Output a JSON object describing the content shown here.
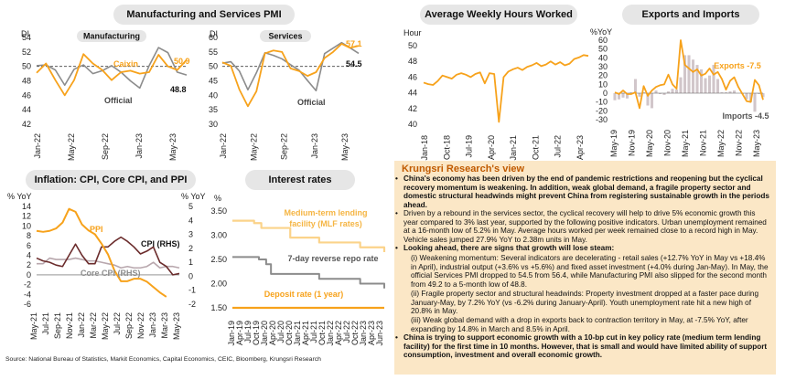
{
  "titles": {
    "pmi": "Manufacturing and Services PMI",
    "hours": "Average Weekly Hours Worked",
    "exports": "Exports and Imports",
    "inflation": "Inflation: CPI, Core CPI, and PPI",
    "rates": "Interest rates"
  },
  "colors": {
    "orange": "#f7a21b",
    "grey": "#8c8c8c",
    "mauve": "#b8a7ad",
    "bar": "#d1c6ca",
    "dash": "#7f7f7f"
  },
  "research": {
    "title": "Krungsri Research's view",
    "bullets": [
      "China's economy has been driven by the end of pandemic restrictions and reopening but the cyclical recovery momentum is weakening. In addition, weak global demand, a fragile property sector and domestic structural headwinds might prevent China from registering sustainable growth in the periods ahead.",
      "Driven by a rebound in the services sector, the cyclical recovery will help to drive 5% economic growth this year compared to 3% last year, supported by the following positive indicators. Urban unemployment remained at a 16-month low of 5.2% in May. Average hours worked per week remained close to a record high in May. Vehicle sales jumped 27.9% YoY to 2.38m units in May.",
      "Looking ahead, there are signs that growth will lose steam:",
      "China is trying to support economic growth with a 10-bp cut in key policy rate (medium term lending facility) for the first time in 10 months. However, that is small and would have limited ability of support consumption, investment and overall economic growth."
    ],
    "sub": [
      "(i) Weakening momentum: Several indicators are decelerating - retail sales (+12.7% YoY in May vs +18.4% in April), industrial output (+3.6% vs +5.6%) and fixed asset investment (+4.0% during Jan-May). In May, the official Services PMI dropped to 54.5 from 56.4, while Manufacturing PMI also slipped for the second month from 49.2 to a 5-month low of 48.8.",
      "(ii) Fragile property sector and structural headwinds: Property investment dropped at a faster pace during January-May, by 7.2% YoY (vs -6.2% during January-April). Youth unemployment rate hit a new high of 20.8% in May.",
      "(iii) Weak global demand with a drop in exports back to contraction territory in May, at -7.5% YoY, after expanding by 14.8% in March and 8.5% in April."
    ]
  },
  "source": "Source: National Bureau of Statistics, Markit Economics, Capital Economics, CEIC, Bloomberg, Krungsri Research",
  "chart_data": [
    {
      "type": "line",
      "title": "Manufacturing",
      "ylabel": "DI",
      "ylim": [
        42,
        54
      ],
      "yticks": [
        42,
        44,
        46,
        48,
        50,
        52,
        54
      ],
      "x_labels": [
        "Jan-22",
        "May-22",
        "Sep-22",
        "Jan-23",
        "May-23"
      ],
      "reference_line": 50,
      "series": [
        {
          "name": "Caixin",
          "end_label": "50.9",
          "values": [
            49.1,
            50.4,
            48.1,
            46.0,
            48.1,
            51.7,
            50.4,
            49.5,
            48.1,
            49.2,
            49.4,
            49.0,
            49.2,
            51.6,
            50.0,
            49.5,
            50.9
          ]
        },
        {
          "name": "Official",
          "end_label": "48.8",
          "values": [
            50.1,
            50.2,
            49.5,
            47.4,
            49.6,
            50.2,
            49.0,
            49.4,
            50.1,
            49.2,
            48.0,
            47.0,
            50.1,
            52.6,
            51.9,
            49.2,
            48.8
          ]
        }
      ]
    },
    {
      "type": "line",
      "title": "Services",
      "ylabel": "DI",
      "ylim": [
        30,
        60
      ],
      "yticks": [
        30,
        35,
        40,
        45,
        50,
        55,
        60
      ],
      "x_labels": [
        "Jan-22",
        "May-22",
        "Sep-22",
        "Jan-23",
        "May-23"
      ],
      "reference_line": 50,
      "series": [
        {
          "name": "Caixin",
          "end_label": "57.1",
          "values": [
            51.4,
            50.2,
            42.0,
            36.2,
            41.4,
            54.5,
            55.5,
            55.0,
            49.3,
            48.4,
            46.7,
            48.0,
            52.9,
            55.0,
            57.8,
            56.4,
            57.1
          ]
        },
        {
          "name": "Official",
          "end_label": "54.5",
          "values": [
            51.1,
            51.6,
            48.4,
            41.9,
            47.8,
            54.7,
            53.8,
            52.6,
            50.6,
            48.7,
            45.1,
            41.6,
            54.4,
            56.3,
            58.2,
            56.4,
            54.5
          ]
        }
      ]
    },
    {
      "type": "line",
      "title": "",
      "ylabel": "Hour",
      "ylim": [
        40,
        50
      ],
      "yticks": [
        40,
        42,
        44,
        46,
        48,
        50
      ],
      "x_labels": [
        "Jan-18",
        "Oct-18",
        "Jul-19",
        "Apr-20",
        "Jan-21",
        "Oct-21",
        "Jul-22",
        "Apr-23"
      ],
      "series": [
        {
          "name": "",
          "values": [
            45.3,
            45.1,
            45.0,
            45.5,
            46.2,
            46.0,
            45.8,
            46.3,
            46.5,
            46.3,
            46.0,
            46.4,
            46.6,
            45.2,
            46.5,
            46.4,
            40.3,
            46.0,
            46.7,
            47.0,
            47.2,
            46.9,
            47.3,
            47.5,
            47.8,
            47.4,
            47.6,
            48.0,
            47.6,
            47.9,
            47.5,
            47.7,
            48.3,
            48.5,
            48.8,
            48.7
          ]
        }
      ]
    },
    {
      "type": "bar+line",
      "title": "",
      "ylabel": "%YoY",
      "ylim": [
        -30,
        60
      ],
      "yticks": [
        -30,
        -20,
        -10,
        0,
        10,
        20,
        30,
        40,
        50,
        60
      ],
      "x_labels": [
        "May-19",
        "Nov-19",
        "May-20",
        "Nov-20",
        "May-21",
        "Nov-21",
        "May-22",
        "Nov-22",
        "May-23"
      ],
      "series": [
        {
          "name": "Exports",
          "end_label": "Exports -7.5",
          "values": [
            1,
            -1,
            3,
            -1,
            -1,
            1,
            -17,
            8,
            -3,
            3,
            7,
            9,
            10,
            21,
            10,
            5,
            60,
            32,
            28,
            24,
            27,
            20,
            22,
            28,
            21,
            24,
            16,
            4,
            14,
            18,
            7,
            -1,
            -9,
            -10,
            15,
            9,
            -7.5
          ]
        },
        {
          "name": "Imports",
          "end_label": "Imports -4.5",
          "values": [
            -8,
            -7,
            -5,
            -6,
            1,
            16,
            -4,
            1,
            -14,
            -17,
            3,
            -1,
            -2,
            2,
            5,
            4,
            18,
            43,
            43,
            38,
            32,
            27,
            17,
            20,
            32,
            16,
            1,
            1,
            2,
            3,
            0,
            -1,
            -7,
            -10,
            -21,
            -1,
            -4.5
          ]
        }
      ]
    },
    {
      "type": "line",
      "title": "",
      "ylabel": "% YoY",
      "y2label": "% YoY",
      "ylim": [
        -6,
        14
      ],
      "yticks": [
        -6,
        -4,
        -2,
        0,
        2,
        4,
        6,
        8,
        10,
        12,
        14
      ],
      "y2lim": [
        -2,
        5
      ],
      "y2ticks": [
        -2,
        -1,
        0,
        1,
        2,
        3,
        4,
        5
      ],
      "x_labels": [
        "May-21",
        "Jul-21",
        "Sep-21",
        "Nov-21",
        "Jan-22",
        "Mar-22",
        "May-22",
        "Jul-22",
        "Sep-22",
        "Nov-22",
        "Jan-23",
        "Mar-23",
        "May-23"
      ],
      "series": [
        {
          "name": "PPI",
          "axis": "left",
          "values": [
            9.0,
            8.8,
            9.0,
            9.5,
            10.7,
            13.5,
            12.9,
            10.3,
            9.1,
            8.3,
            6.4,
            4.2,
            0.9,
            -1.3,
            -1.3,
            -0.8,
            -0.8,
            -1.4,
            -2.5,
            -3.6,
            -4.5
          ]
        },
        {
          "name": "CPI (RHS)",
          "axis": "right",
          "values": [
            1.3,
            1.1,
            1.0,
            0.8,
            0.7,
            1.5,
            2.3,
            1.5,
            0.9,
            0.9,
            2.1,
            2.1,
            2.5,
            2.8,
            2.5,
            2.1,
            1.6,
            1.8,
            2.1,
            1.0,
            0.7,
            0.1,
            0.2
          ]
        },
        {
          "name": "Core CPI (RHS)",
          "axis": "right",
          "values": [
            0.9,
            0.9,
            1.3,
            1.2,
            1.2,
            1.2,
            1.3,
            1.2,
            1.1,
            1.1,
            1.0,
            0.9,
            0.8,
            0.6,
            0.7,
            0.6,
            0.6,
            0.7,
            1.0,
            0.6,
            0.7,
            0.7,
            0.6
          ]
        }
      ]
    },
    {
      "type": "step",
      "title": "",
      "ylabel": "%",
      "ylim": [
        1.5,
        3.5
      ],
      "yticks": [
        1.5,
        2.0,
        2.5,
        3.0,
        3.5
      ],
      "x_labels": [
        "Jan-19",
        "Apr-19",
        "Jul-19",
        "Oct-19",
        "Jan-20",
        "Apr-20",
        "Jul-20",
        "Oct-20",
        "Jan-21",
        "Apr-21",
        "Jul-21",
        "Oct-21",
        "Jan-22",
        "Apr-22",
        "Jul-22",
        "Oct-22",
        "Jan-23",
        "Apr-23",
        "Jun-23"
      ],
      "series": [
        {
          "name": "Medium-term lending facility (MLF rates)",
          "values": [
            3.3,
            3.3,
            3.3,
            3.3,
            3.3,
            3.3,
            3.3,
            3.3,
            3.3,
            3.25,
            3.25,
            3.25,
            3.15,
            3.15,
            3.15,
            3.15,
            3.15,
            3.15,
            3.15,
            3.15,
            3.15,
            3.15,
            3.15,
            3.15,
            2.95,
            2.95,
            2.95,
            2.95,
            2.95,
            2.95,
            2.95,
            2.95,
            2.95,
            2.95,
            2.95,
            2.95,
            2.85,
            2.85,
            2.85,
            2.85,
            2.85,
            2.85,
            2.85,
            2.85,
            2.85,
            2.85,
            2.85,
            2.85,
            2.85,
            2.85,
            2.85,
            2.85,
            2.85,
            2.75,
            2.75,
            2.75,
            2.75,
            2.75,
            2.75,
            2.75,
            2.75,
            2.75,
            2.75,
            2.65
          ]
        },
        {
          "name": "7-day reverse repo rate",
          "values": [
            2.55,
            2.55,
            2.55,
            2.55,
            2.55,
            2.55,
            2.55,
            2.55,
            2.55,
            2.55,
            2.55,
            2.5,
            2.5,
            2.5,
            2.4,
            2.4,
            2.2,
            2.2,
            2.2,
            2.2,
            2.2,
            2.2,
            2.2,
            2.2,
            2.2,
            2.2,
            2.2,
            2.2,
            2.2,
            2.2,
            2.2,
            2.2,
            2.2,
            2.2,
            2.2,
            2.2,
            2.1,
            2.1,
            2.1,
            2.1,
            2.1,
            2.1,
            2.1,
            2.1,
            2.1,
            2.1,
            2.1,
            2.1,
            2.1,
            2.1,
            2.1,
            2.1,
            2.1,
            2.0,
            2.0,
            2.0,
            2.0,
            2.0,
            2.0,
            2.0,
            2.0,
            2.0,
            2.0,
            1.9
          ]
        },
        {
          "name": "Deposit rate (1 year)",
          "values": [
            1.5,
            1.5,
            1.5,
            1.5,
            1.5,
            1.5,
            1.5,
            1.5,
            1.5,
            1.5,
            1.5,
            1.5,
            1.5,
            1.5,
            1.5,
            1.5,
            1.5,
            1.5,
            1.5,
            1.5,
            1.5,
            1.5,
            1.5,
            1.5,
            1.5,
            1.5,
            1.5,
            1.5,
            1.5,
            1.5,
            1.5,
            1.5,
            1.5,
            1.5,
            1.5,
            1.5,
            1.5,
            1.5,
            1.5,
            1.5,
            1.5,
            1.5,
            1.5,
            1.5,
            1.5,
            1.5,
            1.5,
            1.5,
            1.5,
            1.5,
            1.5,
            1.5,
            1.5,
            1.5,
            1.5,
            1.5,
            1.5,
            1.5,
            1.5,
            1.5,
            1.5,
            1.5,
            1.5,
            1.5
          ]
        }
      ]
    }
  ]
}
